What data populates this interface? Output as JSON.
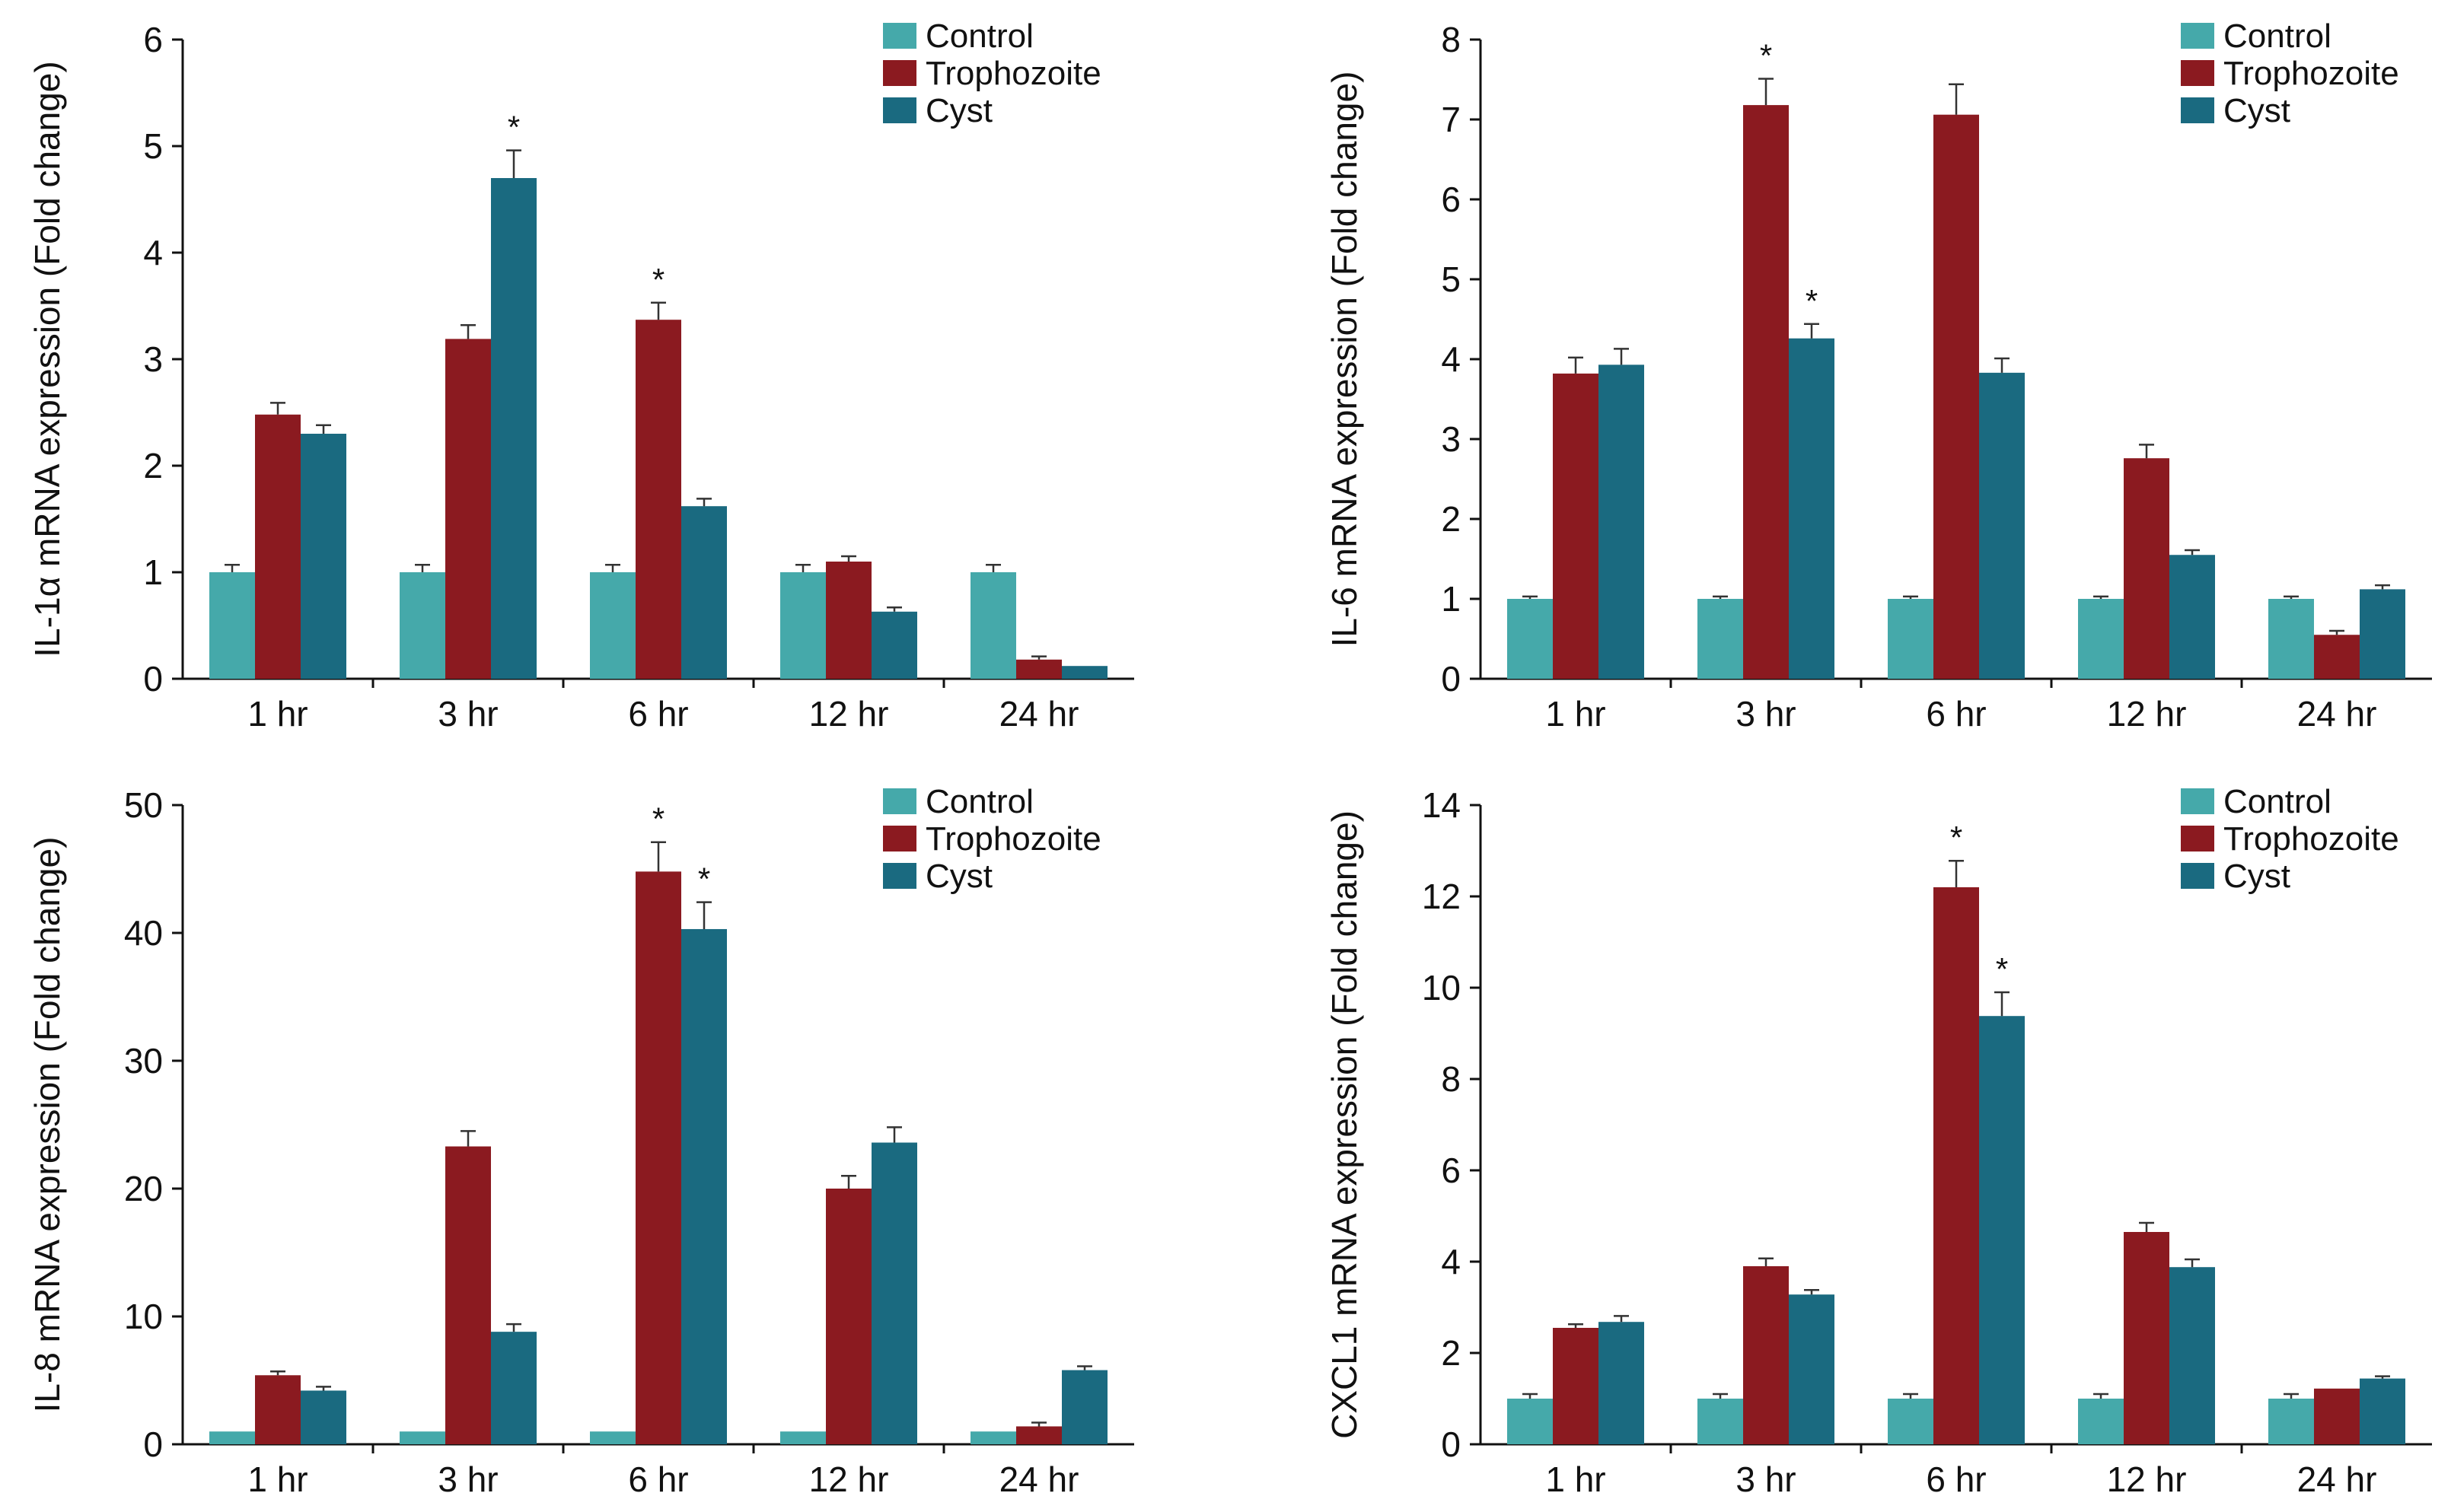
{
  "colors": {
    "Control": "#45a9aa",
    "Trophozoite": "#8b1a20",
    "Cyst": "#1a6a80"
  },
  "chart_data": [
    {
      "type": "bar",
      "ylabel": "IL-1α mRNA expression (Fold change)",
      "categories": [
        "1 hr",
        "3 hr",
        "6 hr",
        "12 hr",
        "24 hr"
      ],
      "ylim": [
        0,
        6
      ],
      "yticks": [
        0,
        1,
        2,
        3,
        4,
        5,
        6
      ],
      "legend": [
        "Control",
        "Trophozoite",
        "Cyst"
      ],
      "series": [
        {
          "name": "Control",
          "values": [
            1.0,
            1.0,
            1.0,
            1.0,
            1.0
          ],
          "errors": [
            0.07,
            0.07,
            0.07,
            0.07,
            0.07
          ],
          "stars": [
            false,
            false,
            false,
            false,
            false
          ]
        },
        {
          "name": "Trophozoite",
          "values": [
            2.48,
            3.19,
            3.37,
            1.1,
            0.18
          ],
          "errors": [
            0.11,
            0.13,
            0.16,
            0.05,
            0.03
          ],
          "stars": [
            false,
            false,
            true,
            false,
            false
          ]
        },
        {
          "name": "Cyst",
          "values": [
            2.3,
            4.7,
            1.62,
            0.63,
            0.12
          ],
          "errors": [
            0.08,
            0.26,
            0.07,
            0.04,
            0.0
          ],
          "stars": [
            false,
            true,
            false,
            false,
            false
          ]
        }
      ]
    },
    {
      "type": "bar",
      "ylabel": "IL-6 mRNA expression (Fold change)",
      "categories": [
        "1 hr",
        "3 hr",
        "6 hr",
        "12 hr",
        "24 hr"
      ],
      "ylim": [
        0,
        8
      ],
      "yticks": [
        0,
        1,
        2,
        3,
        4,
        5,
        6,
        7,
        8
      ],
      "legend": [
        "Control",
        "Trophozoite",
        "Cyst"
      ],
      "series": [
        {
          "name": "Control",
          "values": [
            1.0,
            1.0,
            1.0,
            1.0,
            1.0
          ],
          "errors": [
            0.03,
            0.03,
            0.03,
            0.03,
            0.03
          ],
          "stars": [
            false,
            false,
            false,
            false,
            false
          ]
        },
        {
          "name": "Trophozoite",
          "values": [
            3.82,
            7.18,
            7.06,
            2.76,
            0.55
          ],
          "errors": [
            0.2,
            0.33,
            0.38,
            0.17,
            0.05
          ],
          "stars": [
            false,
            true,
            false,
            false,
            false
          ]
        },
        {
          "name": "Cyst",
          "values": [
            3.93,
            4.26,
            3.83,
            1.55,
            1.12
          ],
          "errors": [
            0.2,
            0.18,
            0.18,
            0.06,
            0.05
          ],
          "stars": [
            false,
            true,
            false,
            false,
            false
          ]
        }
      ]
    },
    {
      "type": "bar",
      "ylabel": "IL-8 mRNA expression (Fold change)",
      "categories": [
        "1 hr",
        "3 hr",
        "6 hr",
        "12 hr",
        "24 hr"
      ],
      "ylim": [
        0,
        50
      ],
      "yticks": [
        0,
        10,
        20,
        30,
        40,
        50
      ],
      "legend": [
        "Control",
        "Trophozoite",
        "Cyst"
      ],
      "series": [
        {
          "name": "Control",
          "values": [
            1.0,
            1.0,
            1.0,
            1.0,
            1.0
          ],
          "errors": [
            0.0,
            0.0,
            0.0,
            0.0,
            0.0
          ],
          "stars": [
            false,
            false,
            false,
            false,
            false
          ]
        },
        {
          "name": "Trophozoite",
          "values": [
            5.4,
            23.3,
            44.8,
            20.0,
            1.4
          ],
          "errors": [
            0.3,
            1.2,
            2.3,
            1.0,
            0.3
          ],
          "stars": [
            false,
            false,
            true,
            false,
            false
          ]
        },
        {
          "name": "Cyst",
          "values": [
            4.2,
            8.8,
            40.3,
            23.6,
            5.8
          ],
          "errors": [
            0.3,
            0.6,
            2.1,
            1.2,
            0.3
          ],
          "stars": [
            false,
            false,
            true,
            false,
            false
          ]
        }
      ]
    },
    {
      "type": "bar",
      "ylabel": "CXCL1 mRNA expression (Fold change)",
      "categories": [
        "1 hr",
        "3 hr",
        "6 hr",
        "12 hr",
        "24 hr"
      ],
      "ylim": [
        0,
        14
      ],
      "yticks": [
        0,
        2,
        4,
        6,
        8,
        10,
        12,
        14
      ],
      "legend": [
        "Control",
        "Trophozoite",
        "Cyst"
      ],
      "series": [
        {
          "name": "Control",
          "values": [
            1.0,
            1.0,
            1.0,
            1.0,
            1.0
          ],
          "errors": [
            0.1,
            0.1,
            0.1,
            0.1,
            0.1
          ],
          "stars": [
            false,
            false,
            false,
            false,
            false
          ]
        },
        {
          "name": "Trophozoite",
          "values": [
            2.55,
            3.9,
            12.2,
            4.65,
            1.22
          ],
          "errors": [
            0.08,
            0.17,
            0.58,
            0.2,
            0.0
          ],
          "stars": [
            false,
            false,
            true,
            false,
            false
          ]
        },
        {
          "name": "Cyst",
          "values": [
            2.68,
            3.28,
            9.38,
            3.88,
            1.44
          ],
          "errors": [
            0.13,
            0.1,
            0.52,
            0.17,
            0.05
          ],
          "stars": [
            false,
            false,
            true,
            false,
            false
          ]
        }
      ]
    }
  ]
}
